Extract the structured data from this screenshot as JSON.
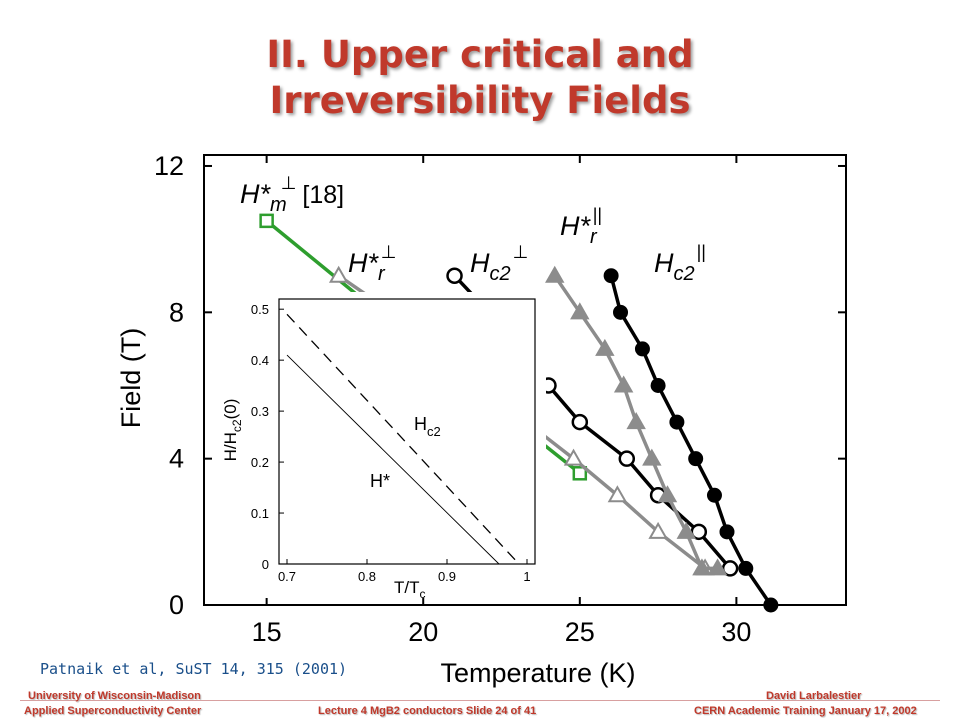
{
  "slide": {
    "title_line1": "II. Upper critical and",
    "title_line2": "Irreversibility Fields",
    "citation": "Patnaik et al, SuST 14, 315 (2001)",
    "footer_left_line1": "University of Wisconsin-Madison",
    "footer_left_line2": "Applied Superconductivity Center",
    "footer_center": "Lecture 4 MgB2 conductors Slide 24 of 41",
    "footer_right_line1": "David Larbalestier",
    "footer_right_line2": "CERN Academic Training January 17, 2002"
  },
  "colors": {
    "title": "#c0392b",
    "green": "#2e9e2e",
    "gray": "#8c8c8c",
    "black": "#000000"
  },
  "chart_data": [
    {
      "type": "line",
      "xlabel": "Temperature (K)",
      "ylabel": "Field (T)",
      "xlim": [
        13,
        33.5
      ],
      "ylim": [
        0,
        12.3
      ],
      "xticks": [
        "15",
        "20",
        "25",
        "30"
      ],
      "yticks": [
        "0",
        "4",
        "8",
        "12"
      ],
      "series": [
        {
          "label_main": "H*",
          "label_sub": "m",
          "label_sup": "⊥",
          "label_extra": "[18]",
          "marker": "open-square",
          "color": "#2e9e2e",
          "x": [
            15,
            20,
            25
          ],
          "y": [
            10.5,
            7,
            3.6
          ]
        },
        {
          "label_main": "H*",
          "label_sub": "r",
          "label_sup": "⊥",
          "marker": "open-triangle",
          "color": "#8c8c8c",
          "x": [
            17.3,
            19,
            20.5,
            22,
            23.3,
            24.8,
            26.2,
            27.5,
            29
          ],
          "y": [
            9,
            8,
            7,
            6,
            5,
            4,
            3,
            2,
            1
          ]
        },
        {
          "label_main": "H",
          "label_sub": "c2",
          "label_sup": "⊥",
          "marker": "open-circle",
          "color": "#000000",
          "x": [
            21,
            22.1,
            23.1,
            24,
            25,
            26.5,
            27.5,
            28.8,
            29.8
          ],
          "y": [
            9,
            8,
            7,
            6,
            5,
            4,
            3,
            2,
            1
          ]
        },
        {
          "label_main": "H*",
          "label_sub": "r",
          "label_sup": "||",
          "marker": "filled-triangle",
          "color": "#8c8c8c",
          "x": [
            24.2,
            25,
            25.8,
            26.4,
            26.8,
            27.3,
            27.8,
            28.4,
            28.9,
            29.4
          ],
          "y": [
            9,
            8,
            7,
            6,
            5,
            4,
            3,
            2,
            1,
            1
          ]
        },
        {
          "label_main": "H",
          "label_sub": "c2",
          "label_sup": "||",
          "marker": "filled-circle",
          "color": "#000000",
          "x": [
            26,
            26.3,
            27,
            27.5,
            28.1,
            28.7,
            29.3,
            29.7,
            30.3,
            31.1
          ],
          "y": [
            9,
            8,
            7,
            6,
            5,
            4,
            3,
            2,
            1,
            0
          ]
        }
      ]
    },
    {
      "type": "line",
      "xlabel_main": "T/T",
      "xlabel_sub": "c",
      "ylabel_main": "H/H",
      "ylabel_sub": "c2",
      "ylabel_tail": "(0)",
      "xlim": [
        0.69,
        1.01
      ],
      "ylim": [
        0,
        0.52
      ],
      "xticks": [
        "0.7",
        "0.8",
        "0.9",
        "1"
      ],
      "yticks": [
        "0",
        "0.1",
        "0.2",
        "0.3",
        "0.4",
        "0.5"
      ],
      "series": [
        {
          "label_main": "H",
          "label_sub": "c2",
          "style": "dashed",
          "x": [
            0.7,
            0.99
          ],
          "y": [
            0.49,
            0.0
          ]
        },
        {
          "label": "H*",
          "style": "solid",
          "x": [
            0.7,
            0.965,
            0.99
          ],
          "y": [
            0.41,
            0.0,
            0.0
          ]
        }
      ]
    }
  ]
}
